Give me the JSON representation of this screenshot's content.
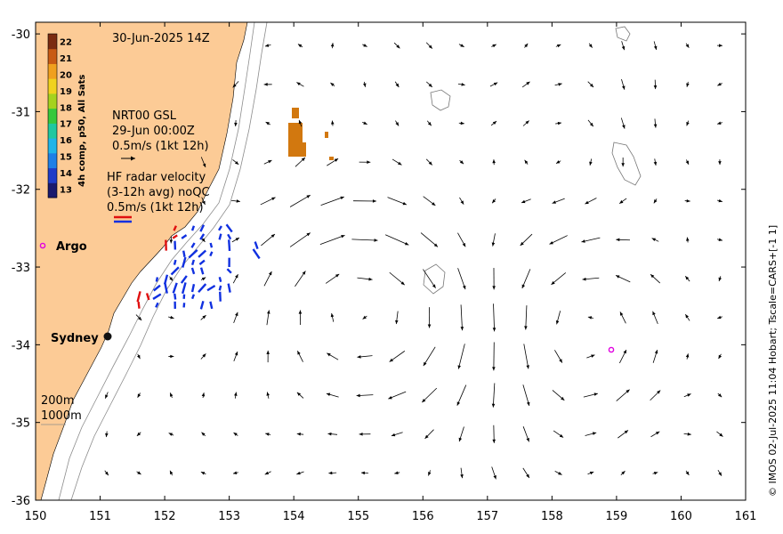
{
  "map": {
    "timestamp": "30-Jun-2025 14Z",
    "x_ticks": [
      "150",
      "151",
      "152",
      "153",
      "154",
      "155",
      "156",
      "157",
      "158",
      "159",
      "160",
      "161"
    ],
    "y_ticks": [
      "-30",
      "-31",
      "-32",
      "-33",
      "-34",
      "-35",
      "-36"
    ],
    "lon_range": [
      150,
      161
    ],
    "lat_range": [
      -36,
      -29.85
    ],
    "colorbar": {
      "title": "4h comp, p50, All Sats",
      "ticks": [
        "22",
        "21",
        "20",
        "19",
        "18",
        "17",
        "16",
        "15",
        "14",
        "13"
      ],
      "range": [
        12.5,
        22.5
      ],
      "colors": [
        "#1a1a6e",
        "#1f3cc8",
        "#1e7fe6",
        "#20b4e8",
        "#20c8a0",
        "#37c83c",
        "#a5d21e",
        "#f0d21e",
        "#f0a01e",
        "#c85a14",
        "#7a2a10"
      ]
    },
    "gsl_legend": {
      "line1": "NRT00 GSL",
      "line2": "29-Jun 00:00Z",
      "line3": "0.5m/s (1kt 12h)"
    },
    "hf_legend": {
      "line1": "HF radar velocity",
      "line2": "(3-12h avg) noQC",
      "line3": "0.5m/s (1kt 12h)"
    },
    "places": {
      "argo": "Argo",
      "sydney": "Sydney"
    },
    "isobaths": {
      "label_200": "200m",
      "label_1000": "1000m"
    },
    "credit": "© IMOS 02-Jul-2025 11:04 Hobart; Tscale=CARS+[-1 1]",
    "colors": {
      "land": "#fccb96",
      "vectors": "#000000",
      "hf_radar": "#1030e0",
      "hf_radar_coastal": "#e01010",
      "argo": "#e000e0",
      "sst_warm": "#d2780f",
      "isobath": "#8c8c8c"
    }
  }
}
